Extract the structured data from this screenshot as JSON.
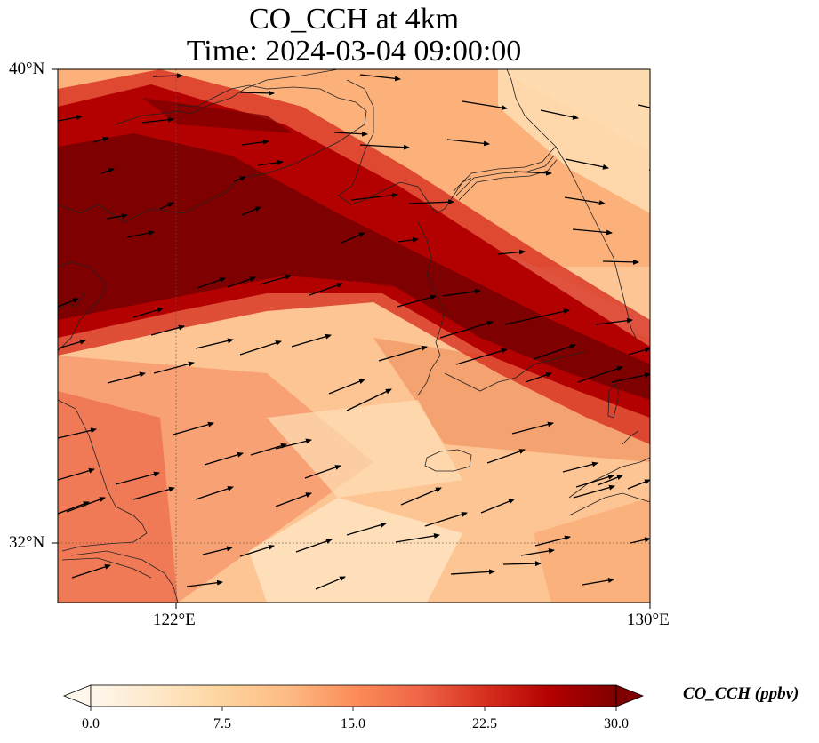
{
  "title": {
    "line1": "CO_CCH at 4km",
    "line2": "Time: 2024-03-04 09:00:00"
  },
  "map": {
    "lon_range": [
      120,
      130
    ],
    "lat_range": [
      31,
      40
    ],
    "lon_ticks": [
      {
        "value": 122,
        "label": "122°E"
      },
      {
        "value": 130,
        "label": "130°E"
      }
    ],
    "lat_ticks": [
      {
        "value": 40,
        "label": "40°N"
      },
      {
        "value": 32,
        "label": "32°N"
      }
    ],
    "gridlines": "dotted"
  },
  "colorbar": {
    "label": "CO_CCH (ppbv)",
    "colormap": "OrRd",
    "min": 0.0,
    "max": 30.0,
    "extend": "both",
    "ticks": [
      "0.0",
      "7.5",
      "15.0",
      "22.5",
      "30.0"
    ],
    "colors": [
      "#fff7ec",
      "#fee8c8",
      "#fdd49e",
      "#fdbb84",
      "#fc8d59",
      "#ef6548",
      "#d7301f",
      "#b30000",
      "#7f0000"
    ]
  },
  "wind_vectors": "black arrows, predominantly westerly to east-northeast flow"
}
